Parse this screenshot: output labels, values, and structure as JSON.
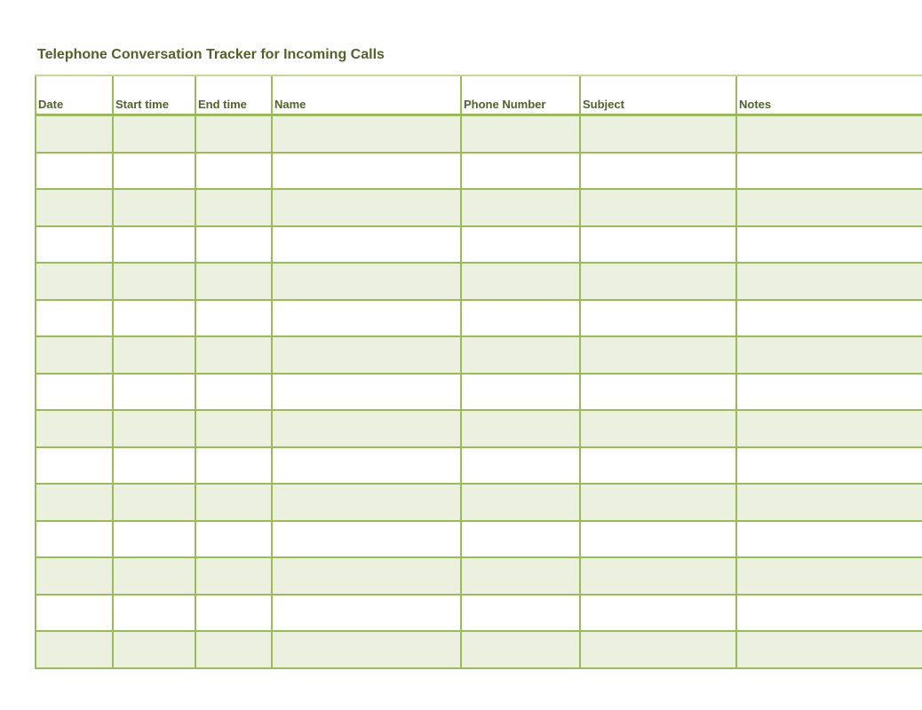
{
  "title": "Telephone Conversation Tracker for Incoming Calls",
  "columns": [
    "Date",
    "Start time",
    "End time",
    "Name",
    "Phone Number",
    "Subject",
    "Notes"
  ],
  "row_count": 15,
  "colors": {
    "text": "#4f6228",
    "border": "#9bbb59",
    "band": "#ebf1de"
  }
}
